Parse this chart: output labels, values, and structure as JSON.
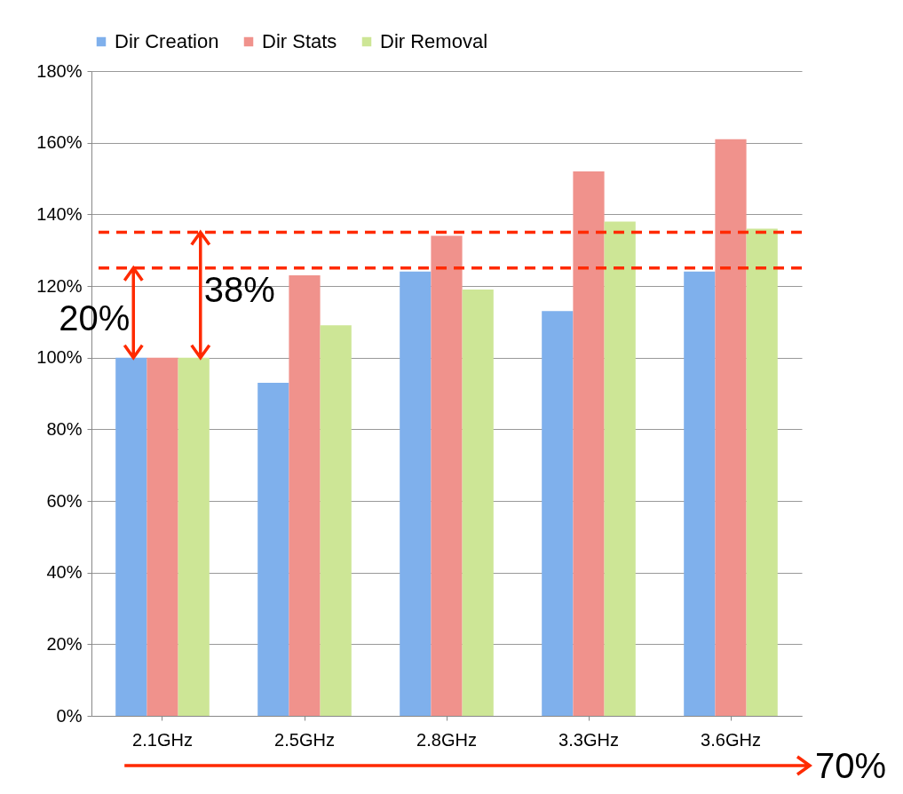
{
  "chart_data": {
    "type": "bar",
    "categories": [
      "2.1GHz",
      "2.5GHz",
      "2.8GHz",
      "3.3GHz",
      "3.6GHz"
    ],
    "series": [
      {
        "name": "Dir Creation",
        "color": "#7fb0ec",
        "values": [
          100,
          93,
          124,
          113,
          124
        ]
      },
      {
        "name": "Dir Stats",
        "color": "#f0928c",
        "values": [
          100,
          123,
          134,
          152,
          161
        ]
      },
      {
        "name": "Dir Removal",
        "color": "#cde696",
        "values": [
          100,
          109,
          119,
          138,
          136
        ]
      }
    ],
    "ylim": [
      0,
      180
    ],
    "yticks": [
      {
        "value": 0,
        "label": "0%"
      },
      {
        "value": 20,
        "label": "20%"
      },
      {
        "value": 40,
        "label": "40%"
      },
      {
        "value": 60,
        "label": "60%"
      },
      {
        "value": 80,
        "label": "80%"
      },
      {
        "value": 100,
        "label": "100%"
      },
      {
        "value": 120,
        "label": "120%"
      },
      {
        "value": 140,
        "label": "140%"
      },
      {
        "value": 160,
        "label": "160%"
      },
      {
        "value": 180,
        "label": "180%"
      }
    ],
    "ref_lines": [
      {
        "axis": "y",
        "value": 135,
        "color": "#ff2a00",
        "line_style": "dashed"
      },
      {
        "axis": "y",
        "value": 125,
        "color": "#ff2a00",
        "line_style": "dashed"
      }
    ],
    "annotations": [
      "20%",
      "38%",
      "70%"
    ],
    "grid": "y",
    "legend": "top"
  }
}
